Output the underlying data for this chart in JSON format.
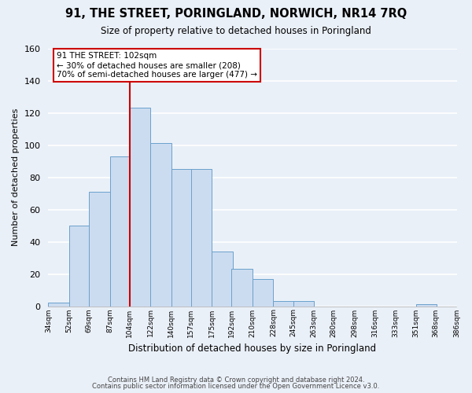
{
  "title": "91, THE STREET, PORINGLAND, NORWICH, NR14 7RQ",
  "subtitle": "Size of property relative to detached houses in Poringland",
  "xlabel": "Distribution of detached houses by size in Poringland",
  "ylabel": "Number of detached properties",
  "bar_left_edges": [
    34,
    52,
    69,
    87,
    104,
    122,
    140,
    157,
    175,
    192,
    210,
    228,
    245,
    263,
    280,
    298,
    316,
    333,
    351,
    368
  ],
  "bar_heights": [
    2,
    50,
    71,
    93,
    123,
    101,
    85,
    85,
    34,
    23,
    17,
    3,
    3,
    0,
    0,
    0,
    0,
    0,
    1,
    0
  ],
  "bin_width": 18,
  "bar_color": "#ccdcf0",
  "bar_edge_color": "#6aa0cc",
  "tick_labels": [
    "34sqm",
    "52sqm",
    "69sqm",
    "87sqm",
    "104sqm",
    "122sqm",
    "140sqm",
    "157sqm",
    "175sqm",
    "192sqm",
    "210sqm",
    "228sqm",
    "245sqm",
    "263sqm",
    "280sqm",
    "298sqm",
    "316sqm",
    "333sqm",
    "351sqm",
    "368sqm",
    "386sqm"
  ],
  "vline_x": 104,
  "vline_color": "#cc0000",
  "ylim": [
    0,
    160
  ],
  "yticks": [
    0,
    20,
    40,
    60,
    80,
    100,
    120,
    140,
    160
  ],
  "annotation_text": "91 THE STREET: 102sqm\n← 30% of detached houses are smaller (208)\n70% of semi-detached houses are larger (477) →",
  "annotation_box_color": "#ffffff",
  "annotation_box_edge": "#cc0000",
  "footer_line1": "Contains HM Land Registry data © Crown copyright and database right 2024.",
  "footer_line2": "Contains public sector information licensed under the Open Government Licence v3.0.",
  "background_color": "#eaf0f8",
  "grid_color": "#ffffff"
}
